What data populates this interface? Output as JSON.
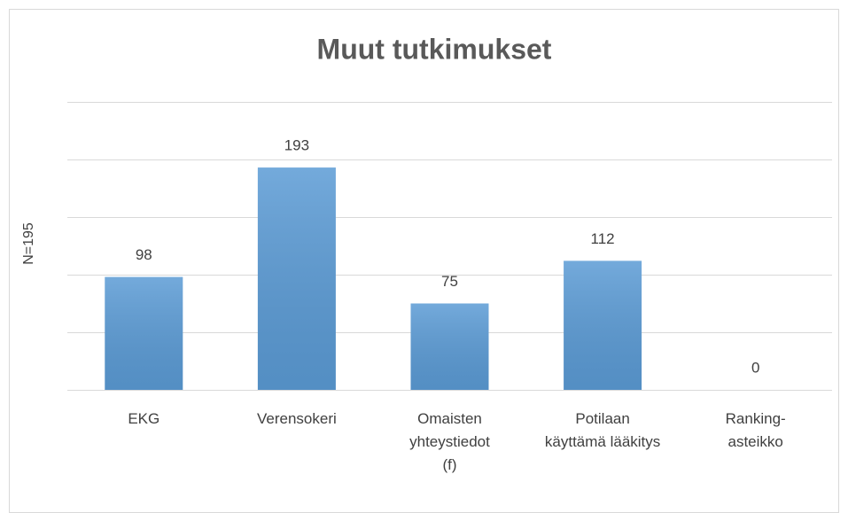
{
  "chart_data": {
    "type": "bar",
    "title": "Muut tutkimukset",
    "y_label": "N=195",
    "categories": [
      "EKG",
      "Verensokeri",
      "Omaisten\nyhteystiedot\n(f)",
      "Potilaan\nkäyttämä lääkitys",
      "Ranking- asteikko"
    ],
    "values": [
      98,
      193,
      75,
      112,
      0
    ],
    "color": "#5b9bd5",
    "ylim": [
      0,
      250
    ],
    "yticks": [
      0,
      50,
      100,
      150,
      200,
      250
    ],
    "grid": true
  }
}
